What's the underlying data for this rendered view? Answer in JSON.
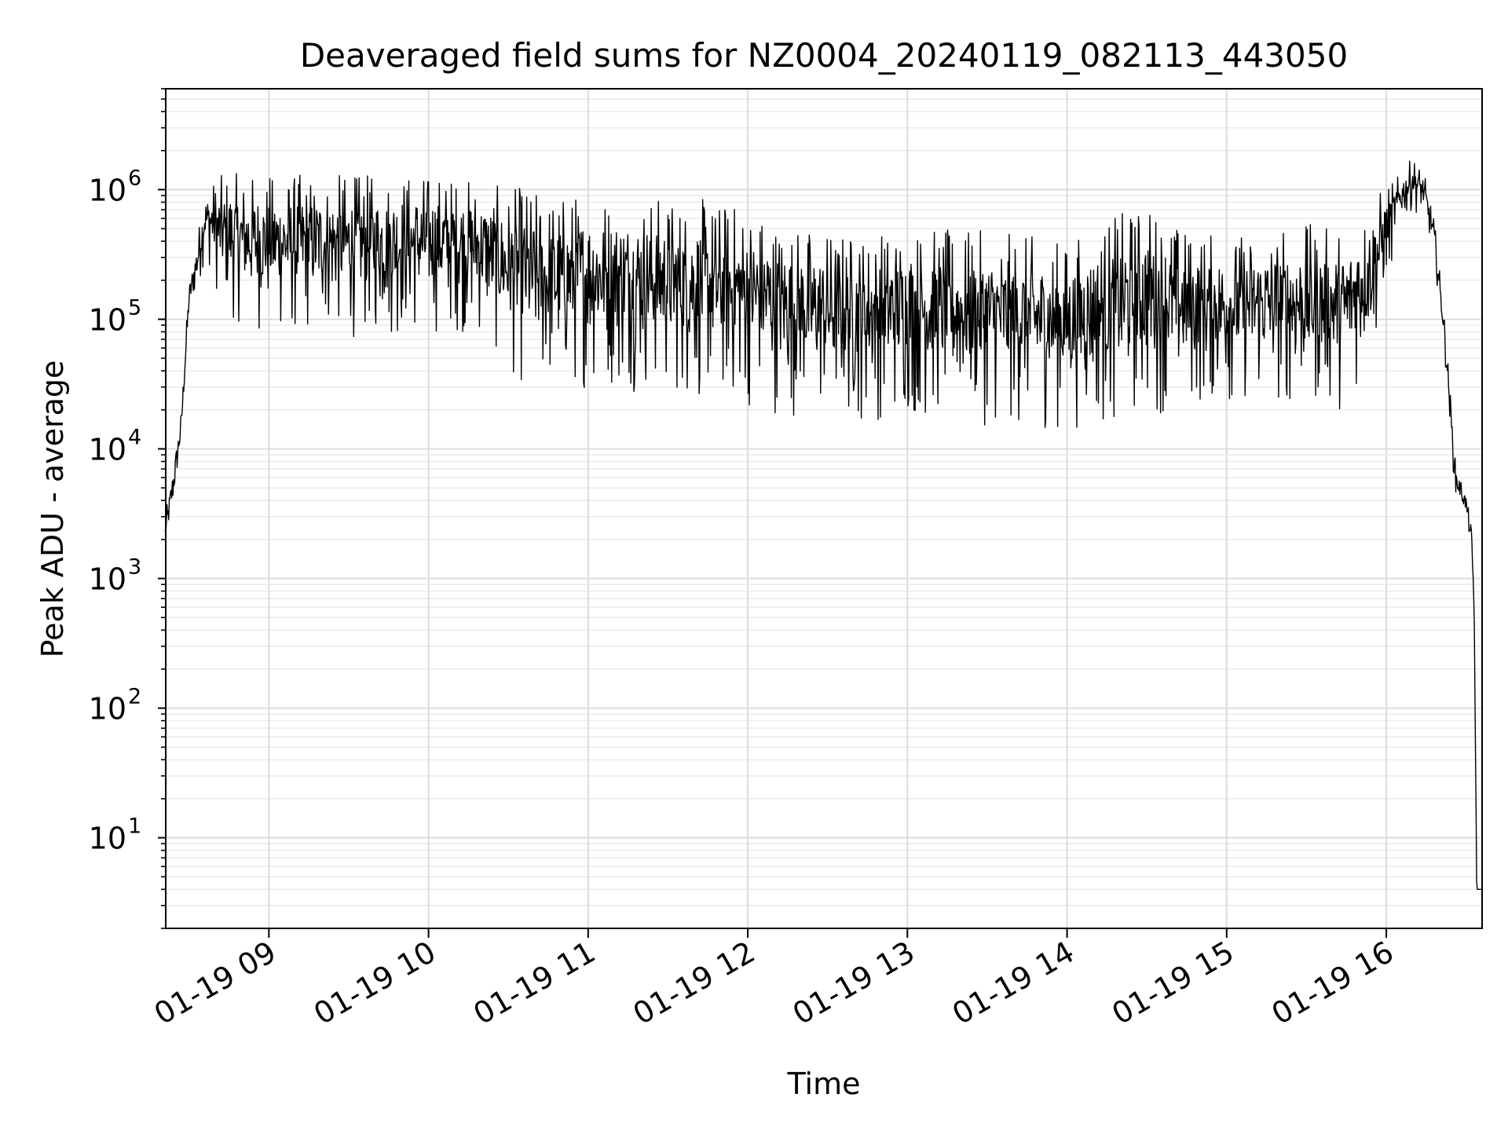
{
  "chart_data": {
    "type": "line",
    "title": "Deaveraged field sums for NZ0004_20240119_082113_443050",
    "xlabel": "Time",
    "ylabel": "Peak ADU - average",
    "yscale": "log",
    "ylim": [
      2,
      6000000
    ],
    "xlim": [
      "2024-01-19 08:21:13",
      "2024-01-19 16:36:00"
    ],
    "grid": true,
    "legend": "none",
    "line_color": "#000000",
    "x_ticks": [
      {
        "value": "2024-01-19 09:00",
        "label": "01-19 09"
      },
      {
        "value": "2024-01-19 10:00",
        "label": "01-19 10"
      },
      {
        "value": "2024-01-19 11:00",
        "label": "01-19 11"
      },
      {
        "value": "2024-01-19 12:00",
        "label": "01-19 12"
      },
      {
        "value": "2024-01-19 13:00",
        "label": "01-19 13"
      },
      {
        "value": "2024-01-19 14:00",
        "label": "01-19 14"
      },
      {
        "value": "2024-01-19 15:00",
        "label": "01-19 15"
      },
      {
        "value": "2024-01-19 16:00",
        "label": "01-19 16"
      }
    ],
    "y_ticks": [
      {
        "value": 10,
        "base": "10",
        "exp": "1"
      },
      {
        "value": 100,
        "base": "10",
        "exp": "2"
      },
      {
        "value": 1000,
        "base": "10",
        "exp": "3"
      },
      {
        "value": 10000,
        "base": "10",
        "exp": "4"
      },
      {
        "value": 100000,
        "base": "10",
        "exp": "5"
      },
      {
        "value": 1000000,
        "base": "10",
        "exp": "6"
      }
    ],
    "series": [
      {
        "x": [
          "2024-01-19 08:21",
          "2024-01-19 08:24",
          "2024-01-19 08:27",
          "2024-01-19 08:30",
          "2024-01-19 08:33",
          "2024-01-19 08:36",
          "2024-01-19 08:39",
          "2024-01-19 08:42",
          "2024-01-19 08:45",
          "2024-01-19 08:50",
          "2024-01-19 08:55",
          "2024-01-19 09:00",
          "2024-01-19 09:10",
          "2024-01-19 09:20",
          "2024-01-19 09:30",
          "2024-01-19 09:40",
          "2024-01-19 09:50",
          "2024-01-19 10:00",
          "2024-01-19 10:10",
          "2024-01-19 10:20",
          "2024-01-19 10:30",
          "2024-01-19 10:35",
          "2024-01-19 10:40",
          "2024-01-19 10:50",
          "2024-01-19 11:00",
          "2024-01-19 11:15",
          "2024-01-19 11:30",
          "2024-01-19 11:45",
          "2024-01-19 12:00",
          "2024-01-19 12:15",
          "2024-01-19 12:30",
          "2024-01-19 12:45",
          "2024-01-19 13:00",
          "2024-01-19 13:15",
          "2024-01-19 13:30",
          "2024-01-19 13:45",
          "2024-01-19 14:00",
          "2024-01-19 14:15",
          "2024-01-19 14:30",
          "2024-01-19 14:45",
          "2024-01-19 15:00",
          "2024-01-19 15:15",
          "2024-01-19 15:30",
          "2024-01-19 15:45",
          "2024-01-19 15:55",
          "2024-01-19 16:05",
          "2024-01-19 16:10",
          "2024-01-19 16:14",
          "2024-01-19 16:18",
          "2024-01-19 16:22",
          "2024-01-19 16:26",
          "2024-01-19 16:28",
          "2024-01-19 16:30",
          "2024-01-19 16:32",
          "2024-01-19 16:33",
          "2024-01-19 16:34",
          "2024-01-19 16:36"
        ],
        "high": [
          3000,
          8000,
          20000,
          200000,
          450000,
          1000000,
          1200000,
          1300000,
          1400000,
          1300000,
          1350000,
          1300000,
          1350000,
          1300000,
          1350000,
          1300000,
          1400000,
          1350000,
          1300000,
          1200000,
          1000000,
          1100000,
          1000000,
          950000,
          1000000,
          950000,
          900000,
          850000,
          800000,
          550000,
          500000,
          480000,
          550000,
          500000,
          480000,
          450000,
          400000,
          600000,
          800000,
          500000,
          450000,
          500000,
          550000,
          500000,
          900000,
          1300000,
          1800000,
          1400000,
          600000,
          100000,
          8000,
          6000,
          4500,
          2500,
          800,
          4,
          4
        ],
        "low": [
          1500,
          3000,
          10000,
          100000,
          150000,
          300000,
          200000,
          120000,
          100000,
          90000,
          80000,
          80000,
          70000,
          80000,
          70000,
          75000,
          70000,
          75000,
          80000,
          70000,
          40000,
          30000,
          25000,
          25000,
          30000,
          28000,
          25000,
          22000,
          20000,
          18000,
          16000,
          16000,
          17000,
          16000,
          15000,
          14000,
          14000,
          15000,
          18000,
          20000,
          22000,
          22000,
          20000,
          20000,
          50000,
          500000,
          700000,
          600000,
          300000,
          50000,
          4000,
          3500,
          3000,
          1500,
          500,
          4,
          4
        ]
      }
    ]
  }
}
